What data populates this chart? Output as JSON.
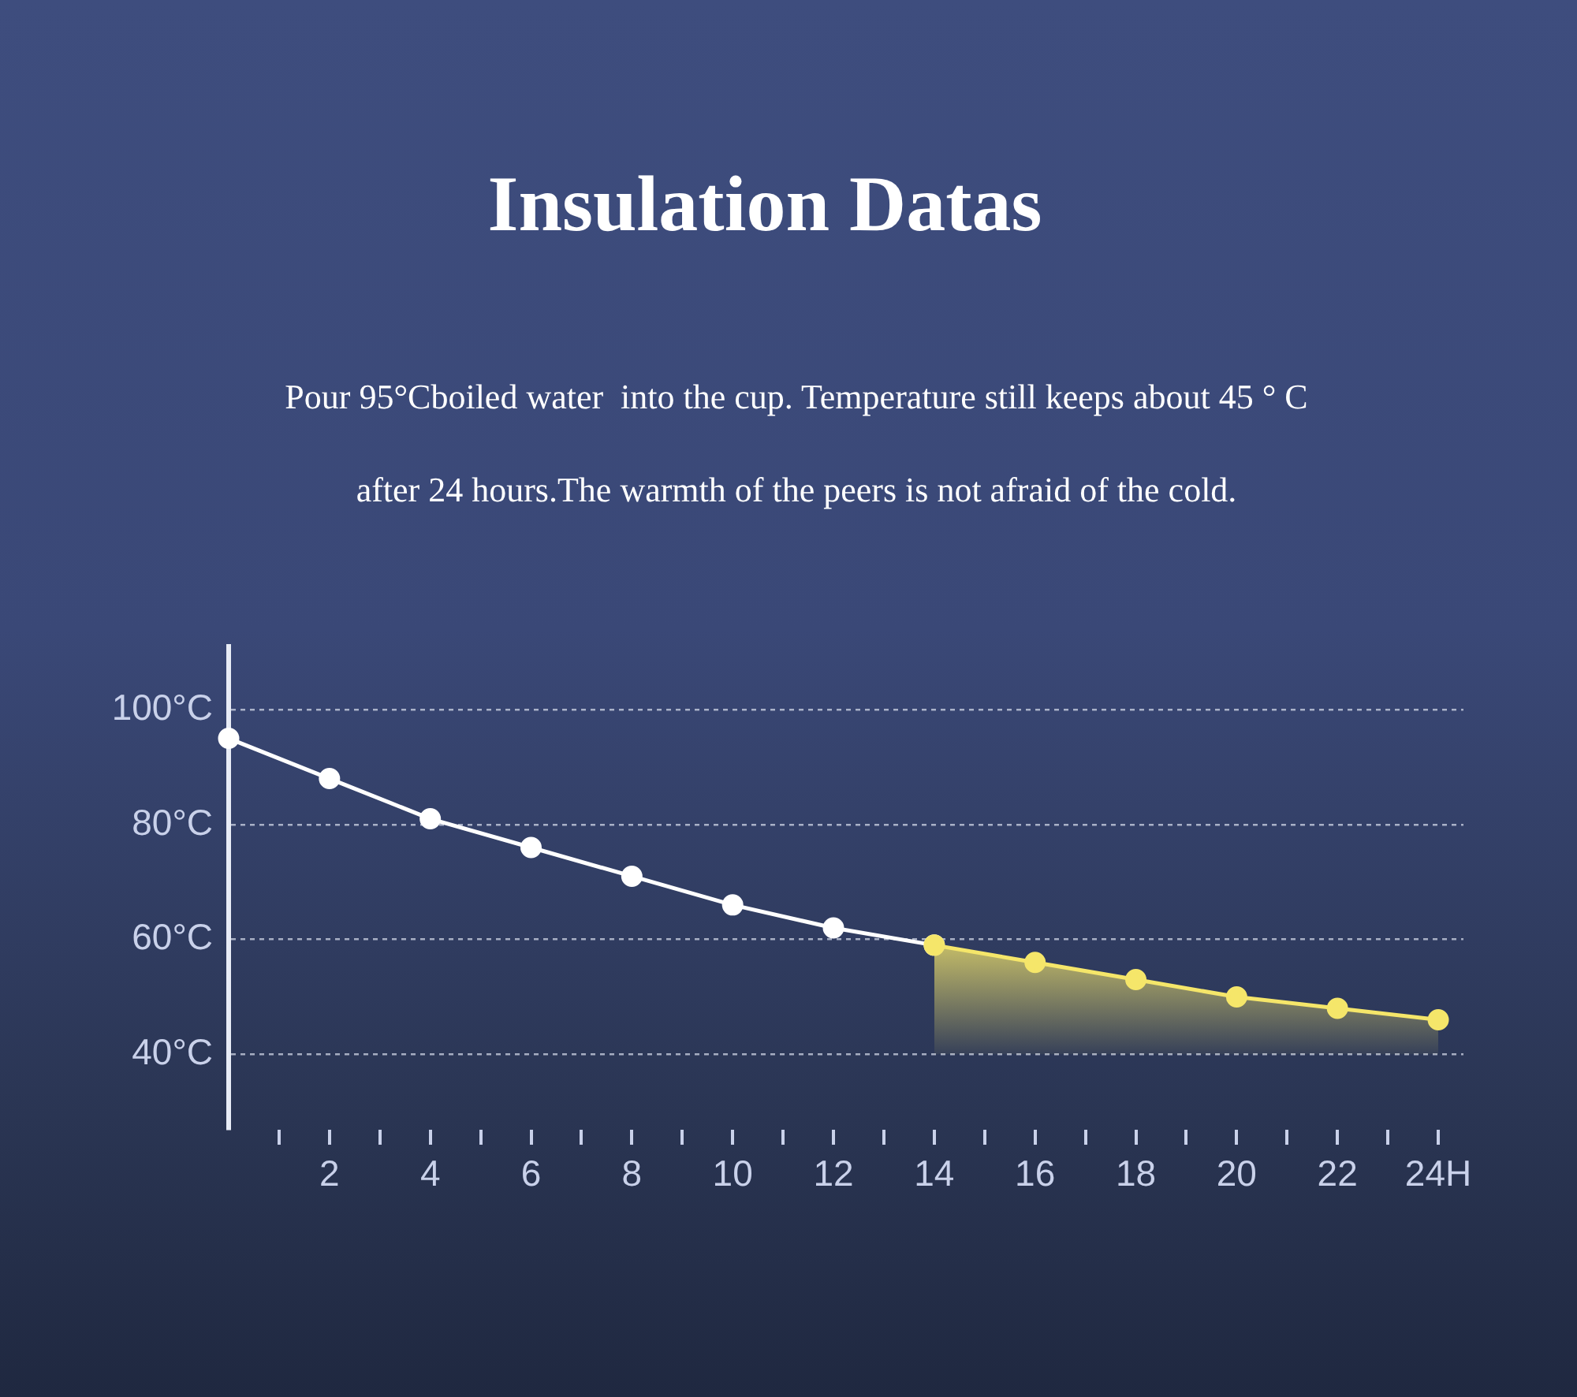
{
  "chart_data": {
    "type": "line",
    "title": "Insulation Datas",
    "subtitle": "Pour 95°Cboiled water  into the cup. Temperature still keeps about 45 ° C\nafter 24 hours.The warmth of the peers is not afraid of the cold.",
    "series": [
      {
        "type": "line",
        "color": "#ffffff",
        "x": [
          0,
          2,
          4,
          6,
          8,
          10,
          12,
          14
        ],
        "values": [
          95,
          88,
          81,
          76,
          71,
          66,
          62,
          59
        ]
      },
      {
        "type": "area",
        "color": "#f5e66a",
        "x": [
          14,
          16,
          18,
          20,
          22,
          24
        ],
        "values": [
          59,
          56,
          53,
          50,
          48,
          46
        ]
      }
    ],
    "xlim": [
      0,
      24.5
    ],
    "xticks": [
      {
        "value": 1,
        "label": null
      },
      2,
      {
        "value": 3,
        "label": null
      },
      4,
      {
        "value": 5,
        "label": null
      },
      6,
      {
        "value": 7,
        "label": null
      },
      8,
      {
        "value": 9,
        "label": null
      },
      10,
      {
        "value": 11,
        "label": null
      },
      12,
      {
        "value": 13,
        "label": null
      },
      14,
      {
        "value": 15,
        "label": null
      },
      16,
      {
        "value": 17,
        "label": null
      },
      18,
      {
        "value": 19,
        "label": null
      },
      20,
      {
        "value": 21,
        "label": null
      },
      22,
      {
        "value": 23,
        "label": null
      },
      {
        "value": 24,
        "label": "24H"
      }
    ],
    "ylim": [
      27,
      111
    ],
    "yticks": [
      {
        "value": 40,
        "label": "40°C"
      },
      {
        "value": 60,
        "label": "60°C"
      },
      {
        "value": 80,
        "label": "80°C"
      },
      {
        "value": 100,
        "label": "100°C"
      }
    ],
    "grid": "y",
    "legend": false,
    "marker": "circle",
    "line_style": "solid"
  }
}
